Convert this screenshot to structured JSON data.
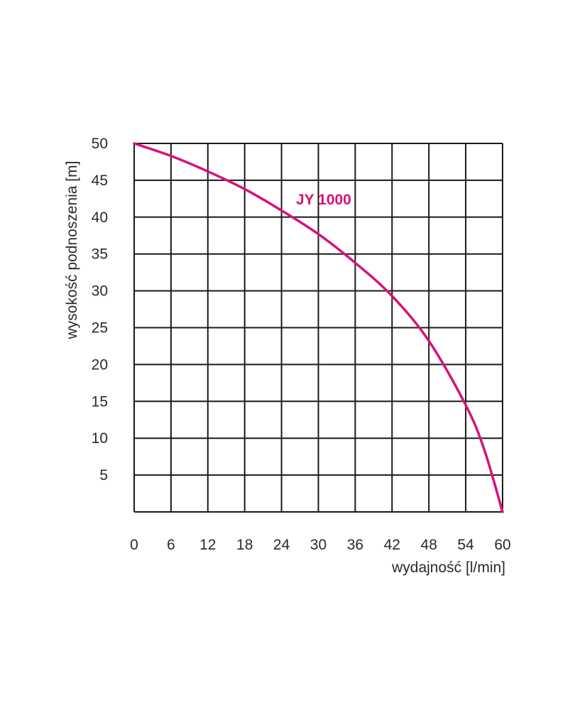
{
  "chart_data": {
    "type": "line",
    "title": "",
    "xlabel": "wydajność [l/min]",
    "ylabel": "wysokość podnoszenia [m]",
    "xlim": [
      0,
      60
    ],
    "ylim": [
      0,
      50
    ],
    "x_ticks": [
      0,
      6,
      12,
      18,
      24,
      30,
      36,
      42,
      48,
      54,
      60
    ],
    "y_ticks": [
      5,
      10,
      15,
      20,
      25,
      30,
      35,
      40,
      45,
      50
    ],
    "grid": true,
    "series": [
      {
        "name": "JY 1000",
        "color": "#d4147a",
        "x": [
          0,
          6,
          12,
          18,
          24,
          30,
          36,
          42,
          48,
          54,
          57,
          60
        ],
        "y": [
          50,
          48.3,
          46.2,
          43.8,
          40.9,
          37.7,
          33.8,
          29.3,
          23.2,
          14.5,
          8.5,
          0
        ]
      }
    ]
  }
}
